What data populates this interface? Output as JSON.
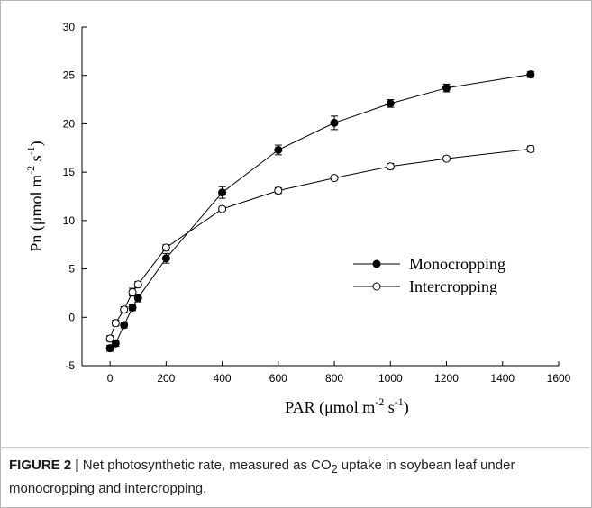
{
  "caption": {
    "figure_label": "FIGURE 2 |",
    "text_before_sub": " Net photosynthetic rate, measured as CO",
    "subscript": "2",
    "text_after_sub": " uptake in soybean leaf under monocropping and intercropping."
  },
  "chart_data": {
    "type": "line",
    "xlabel": "PAR (µmol m-2 s-1)",
    "xlabel_parts": {
      "base": "PAR (μmol m",
      "exp1": "-2",
      "mid": " s",
      "exp2": "-1",
      "end": ")"
    },
    "ylabel": "Pn (µmol m-2 s-1)",
    "ylabel_parts": {
      "base": "Pn (μmol m",
      "exp1": "-2",
      "mid": " s",
      "exp2": "-1",
      "end": ")"
    },
    "xlim": [
      -100,
      1600
    ],
    "ylim": [
      -5,
      30
    ],
    "xticks": [
      0,
      200,
      400,
      600,
      800,
      1000,
      1200,
      1400,
      1600
    ],
    "yticks": [
      -5,
      0,
      5,
      10,
      15,
      20,
      25,
      30
    ],
    "grid": false,
    "legend_position": "center-right",
    "series": [
      {
        "name": "Monocropping",
        "marker": "filled-circle",
        "color": "#000000",
        "x": [
          0,
          20,
          50,
          80,
          100,
          200,
          400,
          600,
          800,
          1000,
          1200,
          1500
        ],
        "y": [
          -3.2,
          -2.7,
          -0.8,
          1.0,
          2.0,
          6.1,
          12.9,
          17.3,
          20.1,
          22.1,
          23.7,
          25.1
        ],
        "error": [
          0.3,
          0.3,
          0.3,
          0.3,
          0.4,
          0.5,
          0.6,
          0.5,
          0.7,
          0.4,
          0.4,
          0.3
        ]
      },
      {
        "name": "Intercropping",
        "marker": "open-circle",
        "color": "#000000",
        "x": [
          0,
          20,
          50,
          80,
          100,
          200,
          400,
          600,
          800,
          1000,
          1200,
          1500
        ],
        "y": [
          -2.2,
          -0.6,
          0.8,
          2.6,
          3.4,
          7.2,
          11.2,
          13.1,
          14.4,
          15.6,
          16.4,
          17.4
        ],
        "error": [
          0.3,
          0.3,
          0.3,
          0.4,
          0.3,
          0.3,
          0.2,
          0.3,
          0.2,
          0.3,
          0.2,
          0.3
        ]
      }
    ]
  }
}
